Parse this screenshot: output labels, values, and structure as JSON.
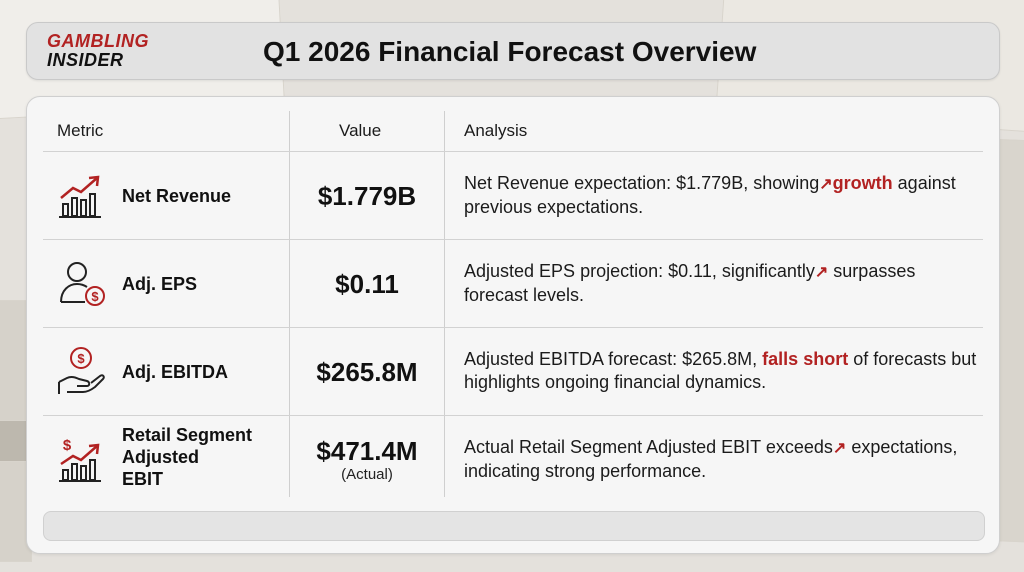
{
  "header": {
    "logo_line1": "GAMBLING",
    "logo_line2": "INSIDER",
    "title": "Q1 2026 Financial Forecast Overview"
  },
  "table": {
    "columns": [
      "Metric",
      "Value",
      "Analysis"
    ],
    "rows": [
      {
        "icon": "growth-chart-icon",
        "metric": "Net Revenue",
        "value": "$1.779B",
        "analysis_pre": "Net Revenue expectation: $1.779B, showing",
        "analysis_arrow": "↗",
        "analysis_highlight": "growth",
        "analysis_post": "against previous expectations."
      },
      {
        "icon": "person-dollar-icon",
        "metric": "Adj. EPS",
        "value": "$0.11",
        "analysis_pre": "Adjusted EPS projection: $0.11, significantly",
        "analysis_arrow": "↗",
        "analysis_post": "surpasses forecast levels."
      },
      {
        "icon": "hand-dollar-icon",
        "metric": "Adj. EBITDA",
        "value": "$265.8M",
        "analysis_pre": "Adjusted EBITDA forecast: $265.8M,",
        "analysis_highlight": "falls short",
        "analysis_post": "of forecasts but highlights ongoing financial dynamics."
      },
      {
        "icon": "dollar-growth-chart-icon",
        "metric_lines": [
          "Retail Segment",
          "Adjusted",
          "EBIT"
        ],
        "value": "$471.4M",
        "value_note": "(Actual)",
        "analysis_pre": "Actual Retail Segment Adjusted EBIT exceeds",
        "analysis_arrow": "↗",
        "analysis_post": "expectations, indicating strong performance."
      }
    ]
  },
  "colors": {
    "accent": "#b22222",
    "text": "#1b1b1b",
    "panel": "#f6f6f6",
    "header_bg": "#e2e2e2"
  }
}
